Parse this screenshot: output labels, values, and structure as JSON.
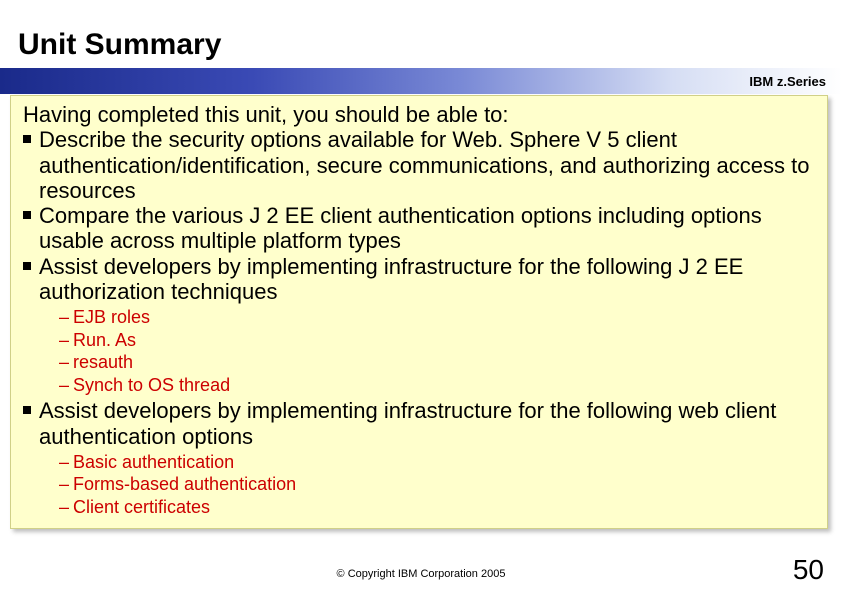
{
  "title": "Unit Summary",
  "brand": "IBM z.Series",
  "intro": "Having completed this unit, you should be able to:",
  "bullets": [
    {
      "text": "Describe the security options available for Web. Sphere V 5 client authentication/identification, secure communications, and authorizing access to resources"
    },
    {
      "text": "Compare the various J 2 EE client authentication options including options usable across multiple platform types"
    },
    {
      "text": "Assist developers by implementing infrastructure for the following J 2 EE authorization techniques",
      "subs": [
        "EJB roles",
        "Run. As",
        "resauth",
        "Synch to OS thread"
      ]
    },
    {
      "text": "Assist developers by implementing infrastructure for the following web client authentication options",
      "subs": [
        "Basic authentication",
        "Forms-based authentication",
        "Client certificates"
      ]
    }
  ],
  "copyright": "© Copyright IBM Corporation 2005",
  "page_number": "50",
  "colors": {
    "content_bg": "#ffffcc",
    "sub_color": "#cc0000",
    "title_color": "#000000"
  },
  "fonts": {
    "title_size": 30,
    "body_size": 22,
    "sub_size": 18,
    "brand_size": 13,
    "copyright_size": 11,
    "pagenum_size": 28
  }
}
